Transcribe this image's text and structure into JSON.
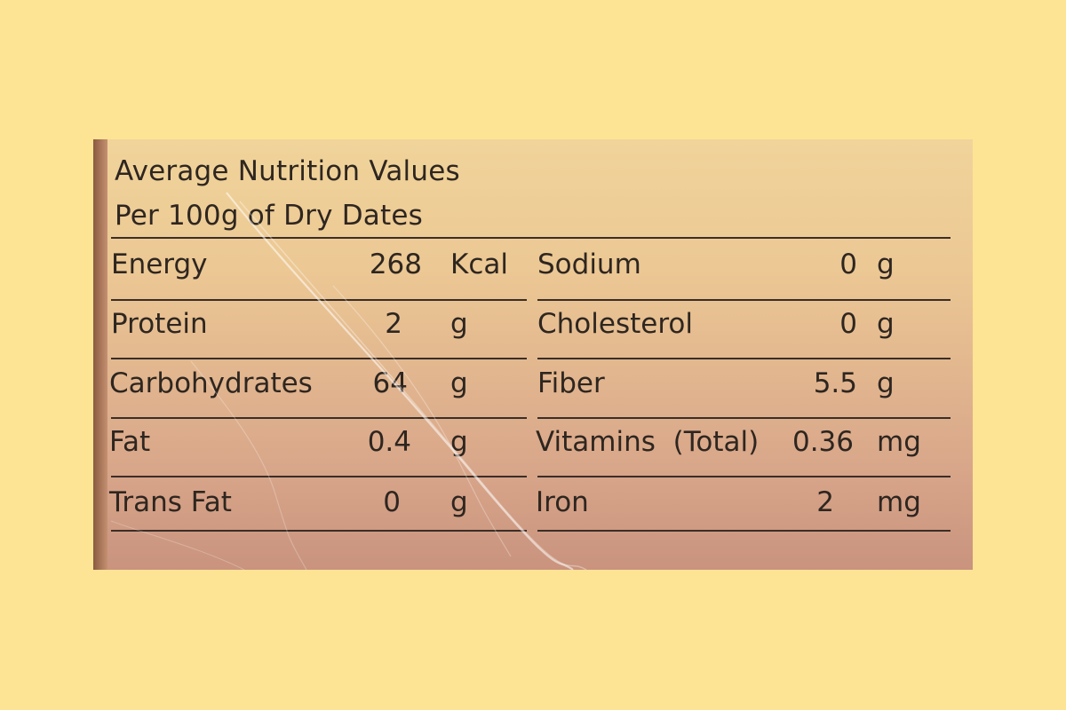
{
  "title_line1": "Average Nutrition Values",
  "title_line2": "Per 100g of Dry Dates",
  "left_rows": [
    {
      "name": "Energy",
      "value": "268",
      "unit": "Kcal"
    },
    {
      "name": "Protein",
      "value": "2",
      "unit": "g"
    },
    {
      "name": "Carbohydrates",
      "value": "64",
      "unit": "g"
    },
    {
      "name": "Fat",
      "value": "0.4",
      "unit": "g"
    },
    {
      "name": "Trans Fat",
      "value": "0",
      "unit": "g"
    }
  ],
  "right_rows": [
    {
      "name": "Sodium",
      "value": "0",
      "unit": "g"
    },
    {
      "name": "Cholesterol",
      "value": "0",
      "unit": "g"
    },
    {
      "name": "Fiber",
      "value": "5.5",
      "unit": "g"
    },
    {
      "name": "Vitamins  (Total)",
      "value": "0.36",
      "unit": "mg"
    },
    {
      "name": "Iron",
      "value": "2",
      "unit": "mg"
    }
  ],
  "colors": {
    "background": "#fde394",
    "label_top": "#f0d49a",
    "label_bottom": "#c9937e",
    "text": "#2e2620"
  }
}
